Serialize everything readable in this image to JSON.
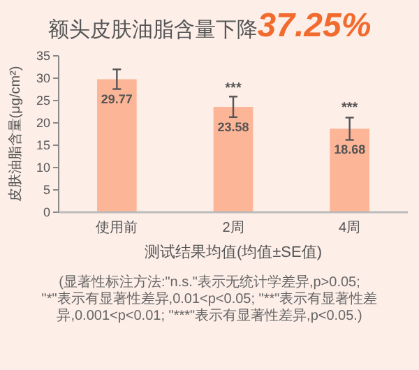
{
  "chart_data": {
    "type": "bar",
    "title": "额头皮肤油脂含量下降37.25%",
    "xlabel": "测试结果均值(均值±SE值)",
    "ylabel": "皮肤油脂含量(μg/cm²)",
    "categories": [
      "使用前",
      "2周",
      "4周"
    ],
    "values": [
      29.77,
      23.58,
      18.68
    ],
    "errors": [
      2.2,
      2.3,
      2.5
    ],
    "color": "#fdb597",
    "data_labels": true,
    "ylim": [
      0,
      35
    ],
    "yticks": [
      0,
      5,
      10,
      15,
      20,
      25,
      30,
      35
    ],
    "grid": false,
    "annotations": [
      {
        "text": "***",
        "x": "2周",
        "y": 26.8
      },
      {
        "text": "***",
        "x": "4周",
        "y": 22.5
      },
      "(显著性标注方法:\"n.s.\"表示无统计学差异,p>0.05;",
      "\"*\"表示有显著性差异,0.01<p<0.05; \"**\"表示有显著性差异,0.001<p<0.01; \"***\"表示有显著性差异,p<0.05.)"
    ]
  }
}
